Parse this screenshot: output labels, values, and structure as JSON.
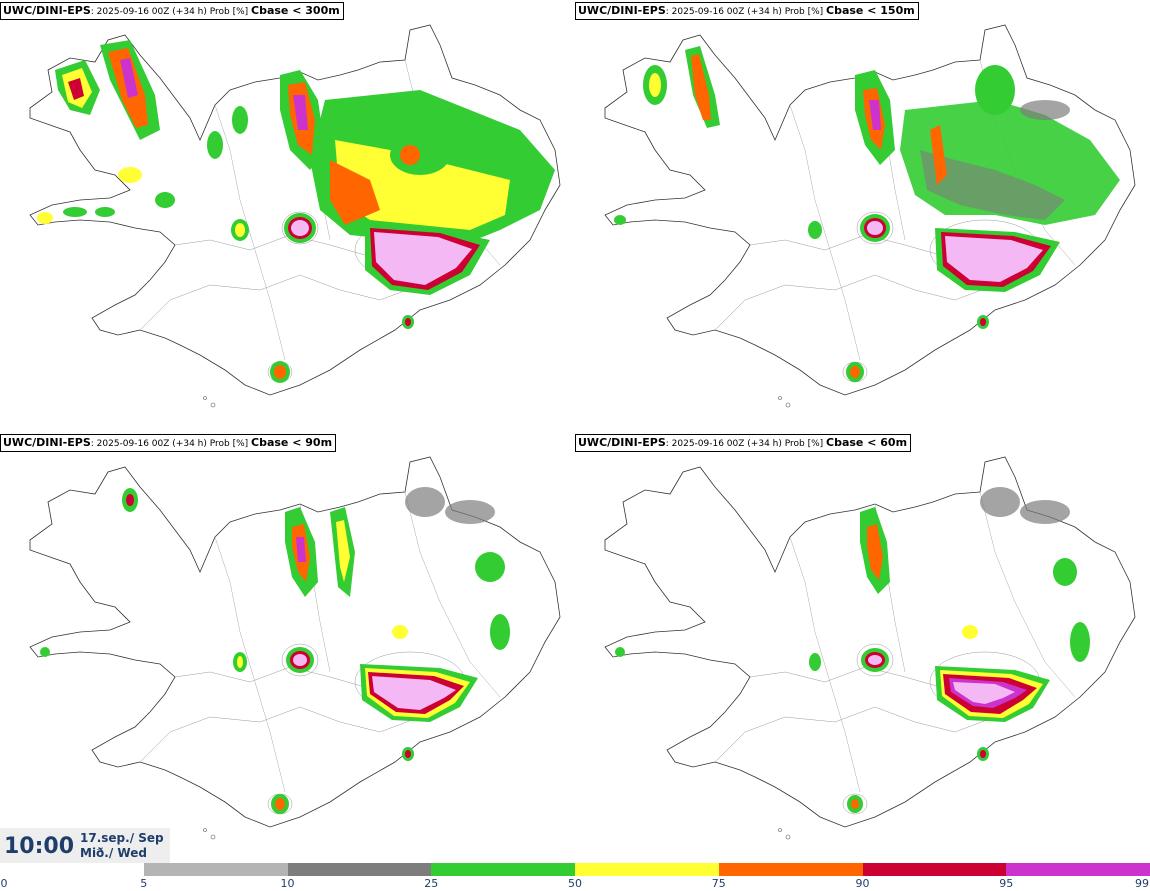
{
  "panels": [
    {
      "model": "UWC/DINI-EPS",
      "meta": ": 2025-09-16 00Z (+34 h) Prob [%] ",
      "threshold": "Cbase < 300m"
    },
    {
      "model": "UWC/DINI-EPS",
      "meta": ": 2025-09-16 00Z (+34 h) Prob [%] ",
      "threshold": "Cbase < 150m"
    },
    {
      "model": "UWC/DINI-EPS",
      "meta": ": 2025-09-16 00Z (+34 h) Prob [%] ",
      "threshold": "Cbase < 90m"
    },
    {
      "model": "UWC/DINI-EPS",
      "meta": ": 2025-09-16 00Z (+34 h) Prob [%] ",
      "threshold": "Cbase < 60m"
    }
  ],
  "time": {
    "clock": "10:00",
    "date_line": "17.sep./ Sep",
    "day_line": "Mið./ Wed"
  },
  "colorbar": {
    "ticks": [
      "0",
      "5",
      "10",
      "25",
      "50",
      "75",
      "90",
      "95",
      "99"
    ],
    "colors": [
      "#ffffff",
      "#b4b4b4",
      "#7d7d7d",
      "#33cc33",
      "#ffff33",
      "#ff6600",
      "#cc0033",
      "#cc33cc",
      "#f4b8f4"
    ]
  }
}
